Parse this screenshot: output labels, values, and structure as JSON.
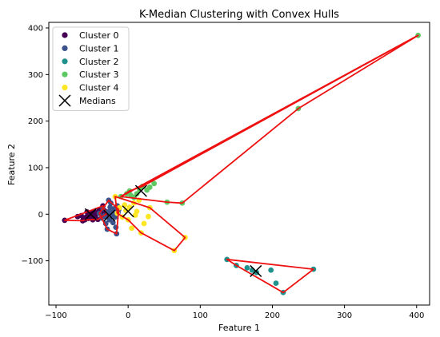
{
  "chart_data": {
    "type": "scatter",
    "title": "K-Median Clustering with Convex Hulls",
    "xlabel": "Feature 1",
    "ylabel": "Feature 2",
    "xlim": [
      -110,
      418
    ],
    "ylim": [
      -195,
      412
    ],
    "xticks": [
      -100,
      0,
      100,
      200,
      300,
      400
    ],
    "yticks": [
      -100,
      0,
      100,
      200,
      300,
      400
    ],
    "xtick_labels": [
      "−100",
      "0",
      "100",
      "200",
      "300",
      "400"
    ],
    "ytick_labels": [
      "−100",
      "0",
      "100",
      "200",
      "300",
      "400"
    ],
    "grid": false,
    "legend_position": "top-left",
    "hull_color": "#ee1111",
    "series": [
      {
        "name": "Cluster 0",
        "color": "#440154",
        "points": [
          [
            -88,
            -13
          ],
          [
            -70,
            -5
          ],
          [
            -65,
            -3
          ],
          [
            -62,
            -8
          ],
          [
            -60,
            -12
          ],
          [
            -58,
            -6
          ],
          [
            -56,
            -2
          ],
          [
            -55,
            -9
          ],
          [
            -53,
            0
          ],
          [
            -52,
            -4
          ],
          [
            -50,
            3
          ],
          [
            -48,
            -7
          ],
          [
            -47,
            6
          ],
          [
            -45,
            -1
          ],
          [
            -44,
            2
          ],
          [
            -42,
            -11
          ],
          [
            -40,
            10
          ],
          [
            -38,
            4
          ],
          [
            -36,
            -3
          ],
          [
            -35,
            18
          ],
          [
            -33,
            8
          ],
          [
            -32,
            -5
          ],
          [
            -30,
            1
          ],
          [
            -63,
            -14
          ],
          [
            -57,
            5
          ],
          [
            -49,
            -12
          ]
        ]
      },
      {
        "name": "Cluster 1",
        "color": "#3b528b",
        "points": [
          [
            -40,
            2
          ],
          [
            -37,
            -8
          ],
          [
            -35,
            12
          ],
          [
            -33,
            -4
          ],
          [
            -31,
            -20
          ],
          [
            -29,
            -32
          ],
          [
            -28,
            5
          ],
          [
            -27,
            30
          ],
          [
            -26,
            -12
          ],
          [
            -25,
            15
          ],
          [
            -24,
            24
          ],
          [
            -23,
            -2
          ],
          [
            -22,
            8
          ],
          [
            -21,
            -18
          ],
          [
            -20,
            0
          ],
          [
            -19,
            12
          ],
          [
            -18,
            -6
          ],
          [
            -17,
            -28
          ],
          [
            -16,
            -42
          ],
          [
            -15,
            18
          ],
          [
            -14,
            4
          ],
          [
            -13,
            10
          ]
        ]
      },
      {
        "name": "Cluster 2",
        "color": "#21918c",
        "points": [
          [
            137,
            -97
          ],
          [
            150,
            -110
          ],
          [
            165,
            -115
          ],
          [
            172,
            -120
          ],
          [
            178,
            -125
          ],
          [
            198,
            -120
          ],
          [
            205,
            -148
          ],
          [
            215,
            -168
          ],
          [
            257,
            -118
          ]
        ]
      },
      {
        "name": "Cluster 3",
        "color": "#5ec962",
        "points": [
          [
            -10,
            38
          ],
          [
            -2,
            44
          ],
          [
            2,
            50
          ],
          [
            4,
            40
          ],
          [
            8,
            36
          ],
          [
            12,
            44
          ],
          [
            16,
            53
          ],
          [
            20,
            60
          ],
          [
            26,
            52
          ],
          [
            30,
            58
          ],
          [
            36,
            66
          ],
          [
            54,
            26
          ],
          [
            75,
            24
          ],
          [
            236,
            227
          ],
          [
            402,
            384
          ]
        ]
      },
      {
        "name": "Cluster 4",
        "color": "#fde725",
        "points": [
          [
            -18,
            38
          ],
          [
            -15,
            2
          ],
          [
            -12,
            14
          ],
          [
            -8,
            -6
          ],
          [
            -5,
            20
          ],
          [
            -3,
            8
          ],
          [
            0,
            -12
          ],
          [
            2,
            15
          ],
          [
            5,
            -30
          ],
          [
            8,
            24
          ],
          [
            10,
            -2
          ],
          [
            12,
            6
          ],
          [
            15,
            30
          ],
          [
            18,
            -40
          ],
          [
            22,
            -20
          ],
          [
            28,
            -5
          ],
          [
            30,
            14
          ],
          [
            64,
            -78
          ],
          [
            79,
            -50
          ]
        ]
      }
    ],
    "medians": {
      "name": "Medians",
      "color": "#000000",
      "points": [
        [
          -52,
          0
        ],
        [
          -26,
          -3
        ],
        [
          177,
          -122
        ],
        [
          18,
          50
        ],
        [
          0,
          6
        ]
      ]
    },
    "hulls": [
      [
        [
          -88,
          -13
        ],
        [
          -35,
          18
        ],
        [
          -30,
          1
        ],
        [
          -42,
          -11
        ],
        [
          -60,
          -12
        ],
        [
          -63,
          -14
        ]
      ],
      [
        [
          -40,
          2
        ],
        [
          -27,
          30
        ],
        [
          -13,
          10
        ],
        [
          -16,
          -42
        ],
        [
          -29,
          -32
        ]
      ],
      [
        [
          137,
          -97
        ],
        [
          257,
          -118
        ],
        [
          215,
          -168
        ],
        [
          150,
          -110
        ]
      ],
      [
        [
          -10,
          38
        ],
        [
          402,
          384
        ],
        [
          20,
          60
        ],
        [
          2,
          50
        ]
      ],
      [
        [
          -18,
          38
        ],
        [
          30,
          14
        ],
        [
          79,
          -50
        ],
        [
          64,
          -78
        ],
        [
          18,
          -40
        ],
        [
          0,
          -12
        ],
        [
          -15,
          2
        ]
      ],
      [
        [
          -10,
          38
        ],
        [
          402,
          384
        ],
        [
          236,
          227
        ],
        [
          75,
          24
        ],
        [
          54,
          26
        ]
      ]
    ]
  }
}
